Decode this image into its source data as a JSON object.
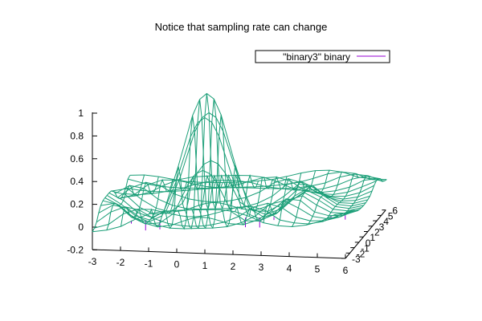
{
  "colors": {
    "surface": "#1a9e77",
    "underside": "#9400d3",
    "axis": "#000000",
    "legend_border": "#000000"
  },
  "chart_data": {
    "type": "surface",
    "title": "Notice that sampling rate can change",
    "legend": {
      "position": "top-right",
      "entries": [
        "\"binary3\" binary"
      ]
    },
    "series": [
      {
        "name": "\"binary3\" binary",
        "description": "3D mesh surface with a central peak of about 1 near (0.5, 0.5) and a flat zero plane elsewhere",
        "x_range": [
          -3,
          6
        ],
        "y_range": [
          -3,
          6
        ],
        "z_peak": 1.0,
        "z_min": -0.12,
        "mesh_x": [
          -3,
          -2.5,
          -2,
          -1.5,
          -1,
          -0.5,
          0,
          0.25,
          0.5,
          0.75,
          1,
          1.5,
          2,
          2.5,
          3,
          3.5,
          4,
          4.5,
          5,
          5.5,
          6
        ],
        "mesh_y": [
          -3,
          -2.5,
          -2,
          -1.5,
          -1,
          -0.5,
          0,
          0.5,
          1,
          1.5,
          2,
          2.5,
          3,
          3.5,
          4,
          4.5,
          5,
          5.5,
          6
        ]
      }
    ],
    "axes": {
      "x": {
        "ticks": [
          -3,
          -2,
          -1,
          0,
          1,
          2,
          3,
          4,
          5,
          6
        ],
        "range": [
          -3,
          6
        ]
      },
      "y": {
        "ticks": [
          -3,
          -2,
          -1,
          0,
          1,
          2,
          3,
          4,
          5,
          6
        ],
        "range": [
          -3,
          6
        ]
      },
      "z": {
        "ticks": [
          -0.2,
          0,
          0.2,
          0.4,
          0.6,
          0.8,
          1
        ],
        "range": [
          -0.2,
          1
        ]
      }
    },
    "grid": false
  }
}
